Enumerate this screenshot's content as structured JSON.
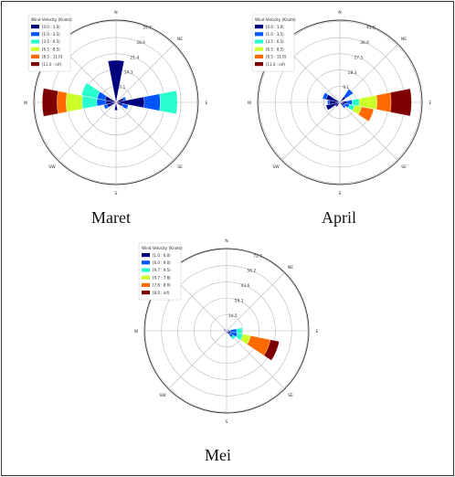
{
  "chart_data": [
    {
      "type": "windrose",
      "title": "",
      "caption": "Maret",
      "directions": [
        "N",
        "NE",
        "E",
        "SE",
        "S",
        "SW",
        "W",
        "NW"
      ],
      "ring_labels": [
        "7.1",
        "14.3",
        "21.4",
        "28.6",
        "35.7"
      ],
      "ring_values": [
        7.1,
        14.3,
        21.4,
        28.6,
        35.7
      ],
      "rmax": 36.2,
      "legend": {
        "title": "Wind Velocity (Knots)",
        "bins": [
          "[0.0 : 1.0)",
          "[1.0 : 3.5)",
          "[3.5 : 6.5)",
          "[6.5 : 8.5)",
          "[8.5 : 11.0)",
          "[11.0 : inf)"
        ],
        "colors": [
          "#00007f",
          "#0055ff",
          "#29ffce",
          "#cdff29",
          "#ff6a00",
          "#7f0000"
        ]
      },
      "sectors": [
        {
          "angle": 0,
          "values": [
            18.5,
            0,
            0,
            0,
            0,
            0
          ]
        },
        {
          "angle": 67.5,
          "values": [
            3.5,
            1.0,
            0,
            0,
            0,
            0
          ]
        },
        {
          "angle": 90,
          "values": [
            12.5,
            7.0,
            7.5,
            0,
            0,
            0
          ]
        },
        {
          "angle": 112.5,
          "values": [
            3.0,
            2.5,
            0,
            0,
            0,
            0
          ]
        },
        {
          "angle": 180,
          "values": [
            3.5,
            0,
            0,
            0,
            0,
            0
          ]
        },
        {
          "angle": 247.5,
          "values": [
            4.0,
            1.5,
            0,
            0,
            0,
            0
          ]
        },
        {
          "angle": 270,
          "values": [
            4.5,
            4.0,
            6.5,
            7.0,
            4.0,
            6.5
          ]
        },
        {
          "angle": 292.5,
          "values": [
            5.0,
            3.5,
            7.0,
            0,
            0,
            0
          ]
        }
      ]
    },
    {
      "type": "windrose",
      "title": "",
      "caption": "April",
      "directions": [
        "N",
        "NE",
        "E",
        "SE",
        "S",
        "SW",
        "W",
        "NW"
      ],
      "ring_labels": [
        "9.1",
        "18.3",
        "27.5",
        "36.6",
        "45.8"
      ],
      "ring_values": [
        9.1,
        18.3,
        27.5,
        36.6,
        45.8
      ],
      "rmax": 46.5,
      "legend": {
        "title": "Wind Velocity (Knots)",
        "bins": [
          "[0.0 : 1.0)",
          "[1.0 : 3.5)",
          "[3.5 : 6.5)",
          "[6.5 : 8.5)",
          "[8.5 : 11.0)",
          "[11.0 : inf)"
        ],
        "colors": [
          "#00007f",
          "#0055ff",
          "#29ffce",
          "#cdff29",
          "#ff6a00",
          "#7f0000"
        ]
      },
      "sectors": [
        {
          "angle": 45,
          "values": [
            4.0,
            5.0,
            0,
            0,
            0,
            0
          ]
        },
        {
          "angle": 90,
          "values": [
            4.0,
            3.0,
            4.0,
            10.0,
            8.0,
            11.5
          ]
        },
        {
          "angle": 112.5,
          "values": [
            3.0,
            2.5,
            3.0,
            4.0,
            7.0,
            0
          ]
        },
        {
          "angle": 135,
          "values": [
            2.5,
            1.5,
            0,
            0,
            0,
            0
          ]
        },
        {
          "angle": 225,
          "values": [
            3.0,
            0,
            0,
            0,
            0,
            0
          ]
        },
        {
          "angle": 247.5,
          "values": [
            8.0,
            0,
            0,
            0,
            0,
            0
          ]
        },
        {
          "angle": 270,
          "values": [
            6.0,
            1.0,
            0,
            0,
            0,
            0
          ]
        },
        {
          "angle": 292.5,
          "values": [
            8.0,
            2.0,
            0,
            0,
            0,
            0
          ]
        }
      ]
    },
    {
      "type": "windrose",
      "title": "",
      "caption": "Mei",
      "directions": [
        "N",
        "NE",
        "E",
        "SE",
        "S",
        "SW",
        "W",
        "NW"
      ],
      "ring_labels": [
        "14.5",
        "29.1",
        "43.6",
        "58.2",
        "72.7"
      ],
      "ring_values": [
        14.5,
        29.1,
        43.6,
        58.2,
        72.7
      ],
      "rmax": 73.5,
      "legend": {
        "title": "Wind Velocity (Knots)",
        "bins": [
          "[1.0 : 6.0)",
          "[6.0 : 9.0)",
          "[9.7 : 9.5)",
          "[9.7 : 7.8)",
          "[7.8 : 8.0)",
          "[8.0 : inf)"
        ],
        "colors": [
          "#00007f",
          "#0055ff",
          "#29ffce",
          "#cdff29",
          "#ff6a00",
          "#7f0000"
        ]
      },
      "sectors": [
        {
          "angle": 90,
          "values": [
            3.0,
            6.0,
            5.0,
            0,
            0,
            0
          ]
        },
        {
          "angle": 112.5,
          "values": [
            4.0,
            6.0,
            5.0,
            7.0,
            18.0,
            8.0
          ]
        },
        {
          "angle": 135,
          "values": [
            4.0,
            3.0,
            2.5,
            0,
            0,
            0
          ]
        },
        {
          "angle": 157.5,
          "values": [
            2.5,
            0,
            0,
            0,
            0,
            0
          ]
        },
        {
          "angle": 180,
          "values": [
            2.0,
            0,
            0,
            0,
            0,
            0
          ]
        },
        {
          "angle": 270,
          "values": [
            2.0,
            0,
            0,
            0,
            0,
            0
          ]
        },
        {
          "angle": 292.5,
          "values": [
            2.5,
            0,
            0,
            0,
            0,
            0
          ]
        }
      ]
    }
  ]
}
